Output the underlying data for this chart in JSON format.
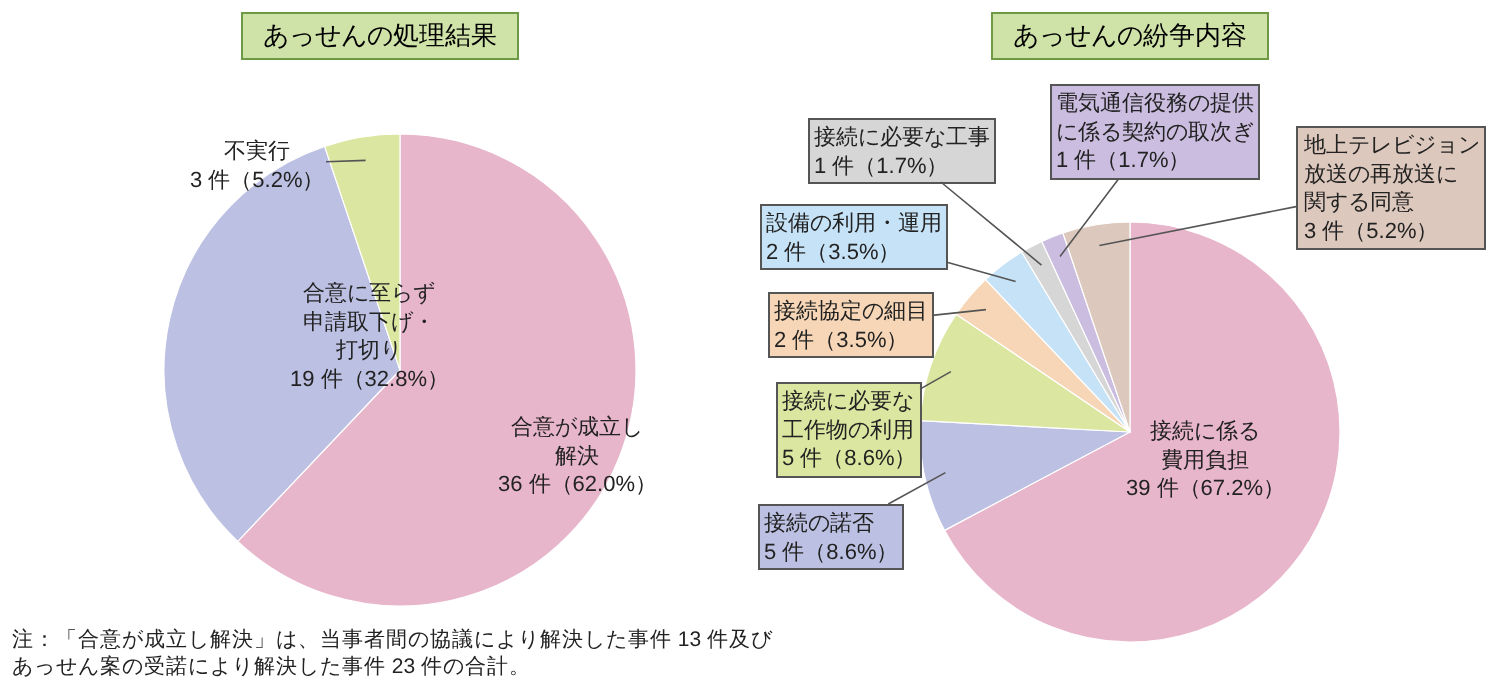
{
  "chart_data": [
    {
      "type": "pie",
      "title": "あっせんの処理結果",
      "categories": [
        "合意が成立し解決",
        "合意に至らず申請取下げ・打切り",
        "不実行"
      ],
      "values": [
        36,
        19,
        3
      ],
      "value_labels": [
        "36 件（62.0%）",
        "19 件（32.8%）",
        "3 件（5.2%）"
      ],
      "colors": [
        "#e8b6ca",
        "#bcc0e2",
        "#dbe6a0"
      ],
      "annotations": [
        "注：「合意が成立し解決」は、当事者間の協議により解決した事件 13 件及びあっせん案の受諾により解決した事件 23 件の合計。"
      ]
    },
    {
      "type": "pie",
      "title": "あっせんの紛争内容",
      "categories": [
        "接続に係る費用負担",
        "接続の諾否",
        "接続に必要な工作物の利用",
        "接続協定の細目",
        "設備の利用・運用",
        "接続に必要な工事",
        "電気通信役務の提供に係る契約の取次ぎ",
        "地上テレビジョン放送の再放送に関する同意"
      ],
      "values": [
        39,
        5,
        5,
        2,
        2,
        1,
        1,
        3
      ],
      "value_labels": [
        "39 件（67.2%）",
        "5 件（8.6%）",
        "5 件（8.6%）",
        "2 件（3.5%）",
        "2 件（3.5%）",
        "1 件（1.7%）",
        "1 件（1.7%）",
        "3 件（5.2%）"
      ],
      "colors": [
        "#e8b6ca",
        "#bcc0e2",
        "#dbe6a0",
        "#f6d6b6",
        "#c6e2f6",
        "#d6d6d6",
        "#cbbde0",
        "#dcc8bc"
      ]
    }
  ]
}
